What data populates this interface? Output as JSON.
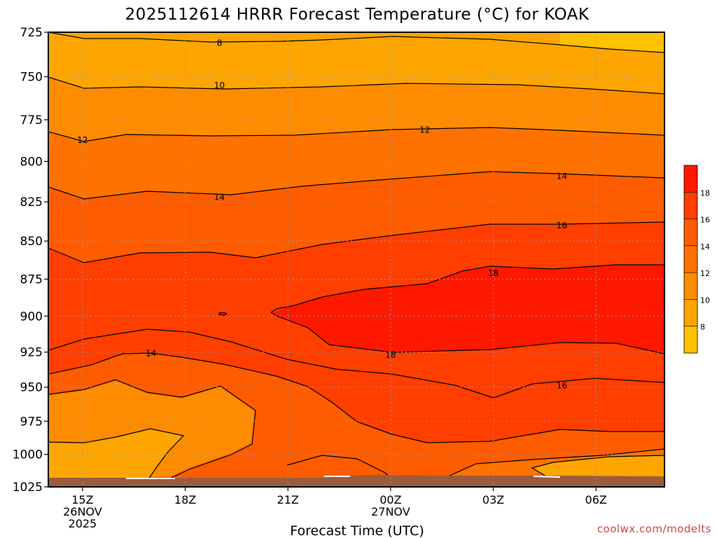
{
  "chart_data": {
    "type": "heatmap",
    "subtype": "filled-contour",
    "title": "2025112614 HRRR Forecast Temperature (°C) for KOAK",
    "xlabel": "Forecast Time (UTC)",
    "ylabel": "",
    "y_scale": "log",
    "y_inverted": true,
    "ylim": [
      1025,
      725
    ],
    "xlim": [
      "2025-11-26T14:00Z",
      "2025-11-27T08:00Z"
    ],
    "grid": true,
    "y_ticks": [
      "725",
      "750",
      "775",
      "800",
      "825",
      "850",
      "875",
      "900",
      "925",
      "950",
      "975",
      "1000",
      "1025"
    ],
    "x_ticks": [
      {
        "time": "2025-11-26T15:00Z",
        "lines": [
          "15Z",
          "26NOV",
          "2025"
        ]
      },
      {
        "time": "2025-11-26T18:00Z",
        "lines": [
          "18Z"
        ]
      },
      {
        "time": "2025-11-26T21:00Z",
        "lines": [
          "21Z"
        ]
      },
      {
        "time": "2025-11-27T00:00Z",
        "lines": [
          "00Z",
          "27NOV"
        ]
      },
      {
        "time": "2025-11-27T03:00Z",
        "lines": [
          "03Z"
        ]
      },
      {
        "time": "2025-11-27T06:00Z",
        "lines": [
          "06Z"
        ]
      }
    ],
    "contour_levels": [
      8,
      10,
      12,
      14,
      16,
      18
    ],
    "colorbar": {
      "ticks": [
        "8",
        "10",
        "12",
        "14",
        "16",
        "18"
      ],
      "colors": [
        "#ffc200",
        "#ffa500",
        "#ff8c00",
        "#ff7200",
        "#ff5c00",
        "#ff3e00",
        "#ff1800"
      ]
    },
    "ground_color": "#9c5b3a",
    "contour_labels": [
      {
        "text": "8",
        "time": "2025-11-26T19:00Z",
        "p": 731
      },
      {
        "text": "10",
        "time": "2025-11-26T19:00Z",
        "p": 755
      },
      {
        "text": "12",
        "time": "2025-11-26T15:00Z",
        "p": 787
      },
      {
        "text": "12",
        "time": "2025-11-27T01:00Z",
        "p": 781
      },
      {
        "text": "14",
        "time": "2025-11-26T19:00Z",
        "p": 822
      },
      {
        "text": "14",
        "time": "2025-11-27T05:00Z",
        "p": 809
      },
      {
        "text": "16",
        "time": "2025-11-27T05:00Z",
        "p": 840
      },
      {
        "text": "18",
        "time": "2025-11-27T03:00Z",
        "p": 871
      },
      {
        "text": "18",
        "time": "2025-11-27T00:00Z",
        "p": 927
      },
      {
        "text": "14",
        "time": "2025-11-26T17:00Z",
        "p": 926
      },
      {
        "text": "16",
        "time": "2025-11-27T05:00Z",
        "p": 949
      }
    ]
  },
  "credit": "coolwx.com/modelts"
}
